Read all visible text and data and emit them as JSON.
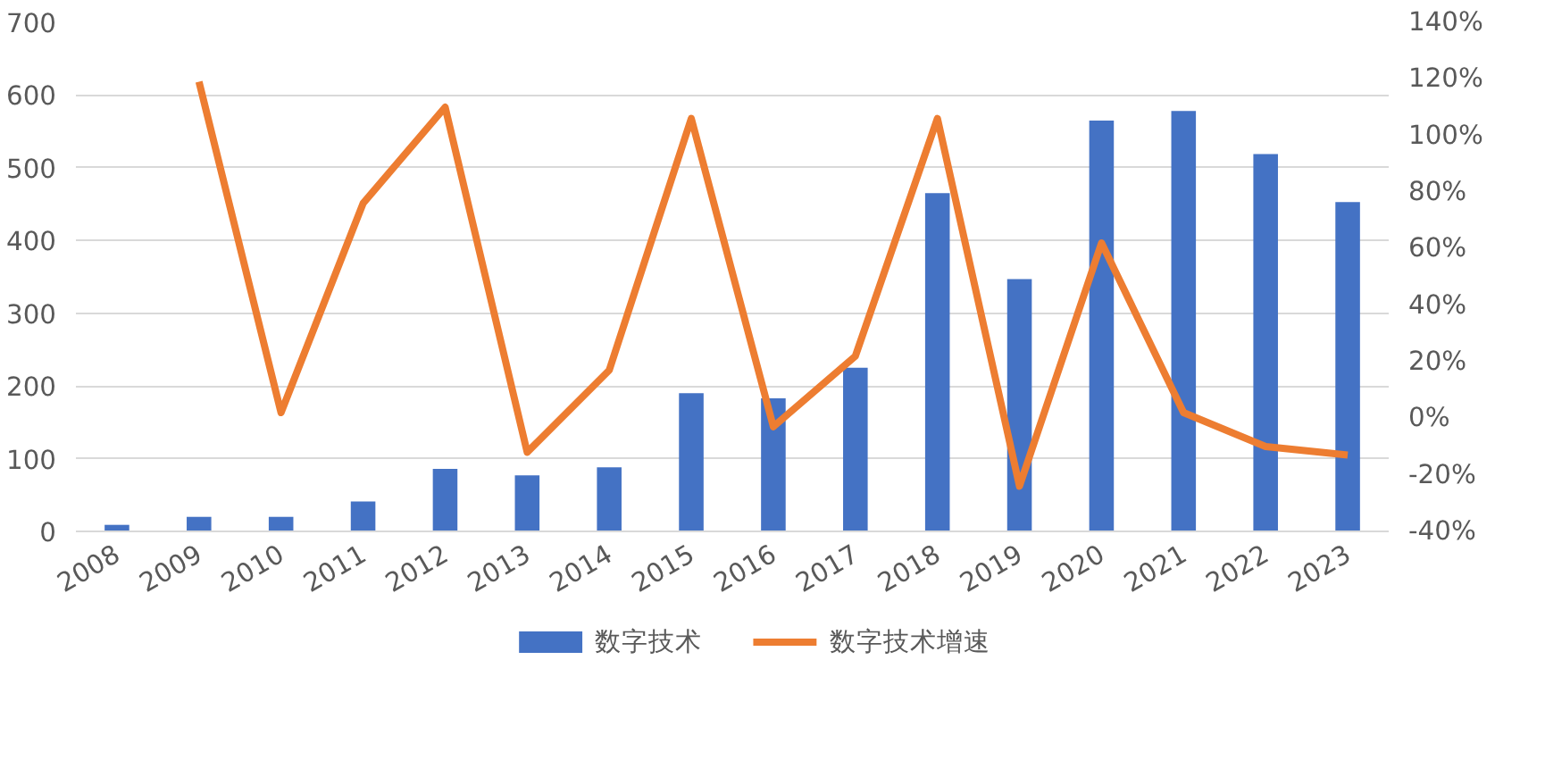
{
  "chart_data": {
    "type": "bar",
    "categories": [
      "2008",
      "2009",
      "2010",
      "2011",
      "2012",
      "2013",
      "2014",
      "2015",
      "2016",
      "2017",
      "2018",
      "2019",
      "2020",
      "2021",
      "2022",
      "2023"
    ],
    "series": [
      {
        "name": "数字技术",
        "color": "#4472c4",
        "values": [
          9,
          20,
          20,
          41,
          86,
          77,
          88,
          190,
          183,
          225,
          465,
          347,
          565,
          578,
          519,
          453
        ]
      },
      {
        "name": "数字技术增速",
        "type": "line",
        "axis": "y2",
        "color": "#ed7d31",
        "values": [
          null,
          119,
          2,
          76,
          110,
          -12,
          17,
          106,
          -3,
          22,
          106,
          -24,
          62,
          2,
          -10,
          -13
        ]
      }
    ],
    "ylim": [
      0,
      700
    ],
    "yticks": [
      0,
      100,
      200,
      300,
      400,
      500,
      600,
      700
    ],
    "y2lim": [
      -40,
      140
    ],
    "y2ticks": [
      {
        "value": -40,
        "label": "-40%"
      },
      {
        "value": -20,
        "label": "-20%"
      },
      {
        "value": 0,
        "label": "0%"
      },
      {
        "value": 20,
        "label": "20%"
      },
      {
        "value": 40,
        "label": "40%"
      },
      {
        "value": 60,
        "label": "60%"
      },
      {
        "value": 80,
        "label": "80%"
      },
      {
        "value": 100,
        "label": "100%"
      },
      {
        "value": 120,
        "label": "120%"
      },
      {
        "value": 140,
        "label": "140%"
      }
    ],
    "grid": "y",
    "legend": "bottom",
    "marker": "none",
    "line_style": "solid"
  }
}
